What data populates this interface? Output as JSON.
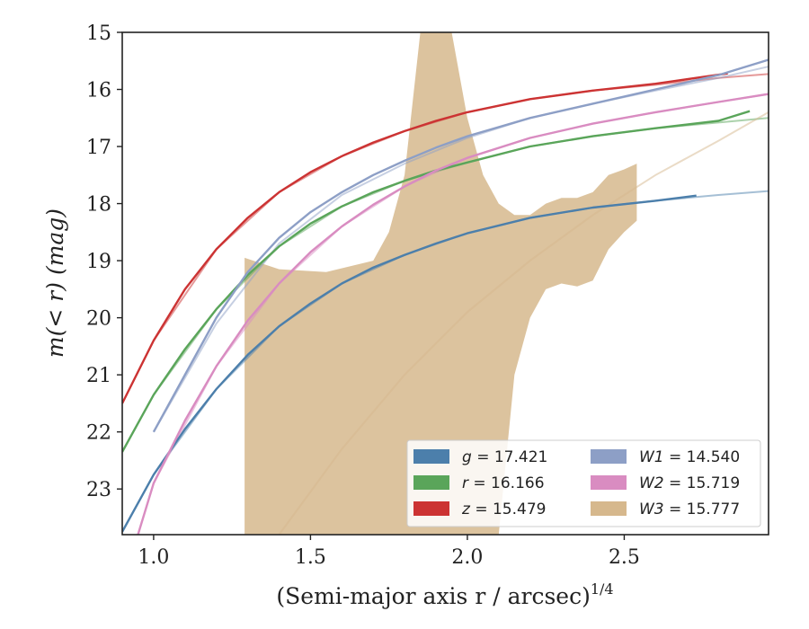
{
  "chart_data": {
    "type": "line",
    "xlabel": "(Semi-major axis r / arcsec)",
    "xlabel_exponent": "1/4",
    "ylabel": "m(< r) (mag)",
    "xlim": [
      0.9,
      2.96
    ],
    "ylim": [
      23.8,
      15.0
    ],
    "y_inverted": true,
    "x_ticks": [
      "1.0",
      "1.5",
      "2.0",
      "2.5"
    ],
    "x_tick_values": [
      1.0,
      1.5,
      2.0,
      2.5
    ],
    "y_ticks": [
      "15",
      "16",
      "17",
      "18",
      "19",
      "20",
      "21",
      "22",
      "23"
    ],
    "y_tick_values": [
      15,
      16,
      17,
      18,
      19,
      20,
      21,
      22,
      23
    ],
    "grid": false,
    "legend_position": "lower right",
    "series": [
      {
        "name": "g = 17.421",
        "band": "g",
        "mag": "17.421",
        "color": "#4c7fab",
        "x": [
          0.9,
          1.0,
          1.1,
          1.2,
          1.3,
          1.4,
          1.5,
          1.6,
          1.7,
          1.8,
          1.9,
          2.0,
          2.2,
          2.4,
          2.6,
          2.73
        ],
        "y": [
          23.75,
          22.75,
          21.95,
          21.25,
          20.65,
          20.15,
          19.75,
          19.4,
          19.12,
          18.9,
          18.7,
          18.52,
          18.25,
          18.07,
          17.95,
          17.86
        ],
        "model_x": [
          0.9,
          1.0,
          1.2,
          1.4,
          1.6,
          1.8,
          2.0,
          2.2,
          2.4,
          2.6,
          2.8,
          2.96
        ],
        "model_y": [
          23.75,
          22.75,
          21.25,
          20.15,
          19.4,
          18.9,
          18.52,
          18.25,
          18.07,
          17.95,
          17.85,
          17.78
        ]
      },
      {
        "name": "r = 16.166",
        "band": "r",
        "mag": "16.166",
        "color": "#5aa55a",
        "x": [
          0.9,
          1.0,
          1.1,
          1.2,
          1.3,
          1.4,
          1.5,
          1.6,
          1.7,
          1.8,
          1.9,
          2.0,
          2.2,
          2.4,
          2.6,
          2.8,
          2.9
        ],
        "y": [
          22.35,
          21.35,
          20.55,
          19.85,
          19.25,
          18.75,
          18.35,
          18.05,
          17.8,
          17.6,
          17.42,
          17.28,
          17.0,
          16.82,
          16.68,
          16.55,
          16.38
        ],
        "model_x": [
          0.9,
          1.0,
          1.2,
          1.4,
          1.6,
          1.8,
          2.0,
          2.2,
          2.4,
          2.6,
          2.8,
          2.96
        ],
        "model_y": [
          22.35,
          21.35,
          19.85,
          18.75,
          18.05,
          17.6,
          17.28,
          17.0,
          16.82,
          16.68,
          16.58,
          16.5
        ]
      },
      {
        "name": "z = 15.479",
        "band": "z",
        "mag": "15.479",
        "color": "#cc3333",
        "x": [
          0.9,
          1.0,
          1.1,
          1.2,
          1.3,
          1.4,
          1.5,
          1.6,
          1.7,
          1.8,
          1.9,
          2.0,
          2.2,
          2.4,
          2.6,
          2.83
        ],
        "y": [
          21.5,
          20.4,
          19.5,
          18.8,
          18.25,
          17.8,
          17.45,
          17.17,
          16.93,
          16.73,
          16.55,
          16.4,
          16.17,
          16.02,
          15.9,
          15.72
        ],
        "model_x": [
          0.9,
          1.0,
          1.2,
          1.4,
          1.6,
          1.8,
          2.0,
          2.2,
          2.4,
          2.6,
          2.8,
          2.96
        ],
        "model_y": [
          21.5,
          20.4,
          18.8,
          17.8,
          17.17,
          16.73,
          16.4,
          16.17,
          16.02,
          15.92,
          15.8,
          15.73
        ]
      },
      {
        "name": "W1 = 14.540",
        "band": "W1",
        "mag": "14.540",
        "color": "#8d9fc6",
        "x": [
          1.0,
          1.1,
          1.2,
          1.3,
          1.4,
          1.5,
          1.6,
          1.7,
          1.8,
          1.9,
          2.0,
          2.2,
          2.4,
          2.6,
          2.8,
          2.96
        ],
        "y": [
          22.0,
          21.0,
          20.0,
          19.2,
          18.6,
          18.15,
          17.8,
          17.5,
          17.25,
          17.02,
          16.82,
          16.5,
          16.25,
          16.0,
          15.75,
          15.48
        ],
        "model_x": [
          1.0,
          1.2,
          1.4,
          1.6,
          1.8,
          2.0,
          2.2,
          2.4,
          2.6,
          2.8,
          2.96
        ],
        "model_y": [
          22.0,
          20.1,
          18.7,
          17.85,
          17.3,
          16.85,
          16.5,
          16.25,
          16.02,
          15.8,
          15.6
        ]
      },
      {
        "name": "W2 = 15.719",
        "band": "W2",
        "mag": "15.719",
        "color": "#d98cc1",
        "x": [
          0.95,
          1.0,
          1.1,
          1.2,
          1.3,
          1.4,
          1.5,
          1.6,
          1.7,
          1.8,
          1.9,
          2.0,
          2.2,
          2.4,
          2.6,
          2.8,
          2.96
        ],
        "y": [
          23.8,
          22.9,
          21.8,
          20.85,
          20.05,
          19.4,
          18.85,
          18.4,
          18.02,
          17.7,
          17.42,
          17.2,
          16.85,
          16.6,
          16.4,
          16.22,
          16.08
        ],
        "model_x": [
          0.95,
          1.0,
          1.2,
          1.4,
          1.6,
          1.8,
          2.0,
          2.2,
          2.4,
          2.6,
          2.8,
          2.96
        ],
        "model_y": [
          23.8,
          22.9,
          20.85,
          19.4,
          18.4,
          17.7,
          17.2,
          16.85,
          16.6,
          16.4,
          16.22,
          16.08
        ]
      },
      {
        "name": "W3 = 15.777",
        "band": "W3",
        "mag": "15.777",
        "color": "#d6b88d",
        "band_x": [
          1.29,
          1.4,
          1.55,
          1.7,
          1.75,
          1.8,
          1.85,
          1.9,
          1.95,
          2.0,
          2.05,
          2.1,
          2.15,
          2.2,
          2.25,
          2.3,
          2.35,
          2.4,
          2.45,
          2.5,
          2.54
        ],
        "band_upper": [
          18.95,
          19.15,
          19.2,
          19.0,
          18.5,
          17.5,
          15.0,
          15.0,
          15.0,
          16.5,
          17.5,
          18.0,
          18.2,
          18.2,
          18.0,
          17.9,
          17.9,
          17.8,
          17.5,
          17.4,
          17.3
        ],
        "band_lower": [
          23.8,
          23.8,
          23.8,
          23.8,
          23.8,
          23.8,
          23.8,
          23.8,
          23.8,
          23.8,
          23.8,
          23.8,
          21.0,
          20.0,
          19.5,
          19.4,
          19.45,
          19.35,
          18.8,
          18.5,
          18.3
        ],
        "model_x": [
          1.4,
          1.6,
          1.8,
          2.0,
          2.2,
          2.4,
          2.6,
          2.8,
          2.96
        ],
        "model_y": [
          23.8,
          22.3,
          21.0,
          19.9,
          19.0,
          18.2,
          17.5,
          16.9,
          16.4
        ]
      }
    ]
  }
}
